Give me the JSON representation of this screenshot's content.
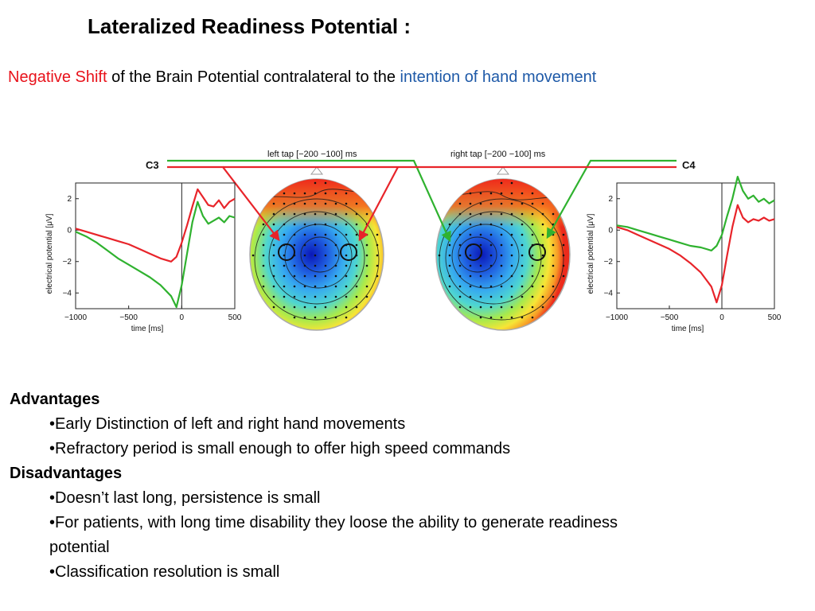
{
  "title": "Lateralized Readiness Potential :",
  "subtitle": {
    "neg": "Negative Shift",
    "mid": " of the Brain Potential contralateral to the ",
    "intent": "intention of hand movement"
  },
  "figure": {
    "c3_label": "C3",
    "c4_label": "C4",
    "left_tap_label": "left tap  [−200 −100] ms",
    "right_tap_label": "right tap  [−200 −100] ms",
    "colors": {
      "red": "#e8242a",
      "green": "#2fb22f"
    }
  },
  "chart_data": [
    {
      "type": "line",
      "xlabel": "time  [ms]",
      "ylabel": "electrical potential  [μV]",
      "xlim": [
        -1000,
        500
      ],
      "ylim": [
        -5,
        3
      ],
      "xticks": [
        "−1000",
        "−500",
        "0",
        "500"
      ],
      "yticks": [
        "2",
        "0",
        "−2",
        "−4"
      ],
      "grid": false,
      "series": [
        {
          "color": "#e8242a",
          "x": [
            -1000,
            -900,
            -800,
            -700,
            -600,
            -500,
            -400,
            -300,
            -200,
            -100,
            -50,
            0,
            50,
            100,
            150,
            200,
            250,
            300,
            350,
            400,
            450,
            500
          ],
          "values": [
            0.1,
            -0.1,
            -0.3,
            -0.5,
            -0.7,
            -0.9,
            -1.2,
            -1.5,
            -1.8,
            -2.0,
            -1.7,
            -0.8,
            0.3,
            1.5,
            2.6,
            2.1,
            1.6,
            1.5,
            1.9,
            1.4,
            1.8,
            2.0
          ]
        },
        {
          "color": "#2fb22f",
          "x": [
            -1000,
            -900,
            -800,
            -700,
            -600,
            -500,
            -400,
            -300,
            -200,
            -100,
            -50,
            0,
            50,
            100,
            150,
            200,
            250,
            300,
            350,
            400,
            450,
            500
          ],
          "values": [
            -0.1,
            -0.4,
            -0.8,
            -1.3,
            -1.8,
            -2.2,
            -2.6,
            -3.0,
            -3.5,
            -4.2,
            -4.9,
            -3.5,
            -1.5,
            0.5,
            1.8,
            0.9,
            0.4,
            0.6,
            0.8,
            0.5,
            0.9,
            0.8
          ]
        }
      ]
    },
    {
      "type": "line",
      "xlabel": "time  [ms]",
      "ylabel": "electrical potential  [μV]",
      "xlim": [
        -1000,
        500
      ],
      "ylim": [
        -5,
        3
      ],
      "xticks": [
        "−1000",
        "−500",
        "0",
        "500"
      ],
      "yticks": [
        "2",
        "0",
        "−2",
        "−4"
      ],
      "grid": false,
      "series": [
        {
          "color": "#e8242a",
          "x": [
            -1000,
            -900,
            -800,
            -700,
            -600,
            -500,
            -400,
            -300,
            -200,
            -100,
            -50,
            0,
            50,
            100,
            150,
            200,
            250,
            300,
            350,
            400,
            450,
            500
          ],
          "values": [
            0.2,
            0.0,
            -0.3,
            -0.6,
            -0.9,
            -1.2,
            -1.6,
            -2.1,
            -2.7,
            -3.6,
            -4.6,
            -3.5,
            -1.6,
            0.2,
            1.6,
            0.8,
            0.5,
            0.7,
            0.6,
            0.8,
            0.6,
            0.7
          ]
        },
        {
          "color": "#2fb22f",
          "x": [
            -1000,
            -900,
            -800,
            -700,
            -600,
            -500,
            -400,
            -300,
            -200,
            -100,
            -50,
            0,
            50,
            100,
            150,
            200,
            250,
            300,
            350,
            400,
            450,
            500
          ],
          "values": [
            0.3,
            0.2,
            0.0,
            -0.2,
            -0.4,
            -0.6,
            -0.8,
            -1.0,
            -1.1,
            -1.3,
            -1.0,
            -0.3,
            0.9,
            2.0,
            3.4,
            2.5,
            2.0,
            2.2,
            1.8,
            2.0,
            1.7,
            1.9
          ]
        }
      ]
    }
  ],
  "advantages": {
    "heading": "Advantages",
    "items": [
      "•Early Distinction of left and right hand movements",
      "•Refractory period is small enough to offer high speed commands"
    ]
  },
  "disadvantages": {
    "heading": "Disadvantages",
    "items": [
      "•Doesn’t last long, persistence is small",
      "•For patients, with long time disability they loose the ability to generate readiness",
      "potential",
      "•Classification resolution is small"
    ]
  }
}
